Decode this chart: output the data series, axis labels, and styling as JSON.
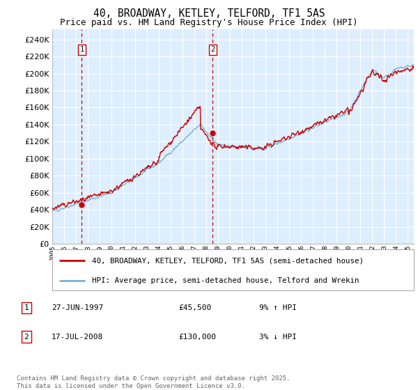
{
  "title": "40, BROADWAY, KETLEY, TELFORD, TF1 5AS",
  "subtitle": "Price paid vs. HM Land Registry's House Price Index (HPI)",
  "ylabel_values": [
    0,
    20000,
    40000,
    60000,
    80000,
    100000,
    120000,
    140000,
    160000,
    180000,
    200000,
    220000,
    240000
  ],
  "ylim": [
    0,
    252000
  ],
  "xlim_start": 1995.0,
  "xlim_end": 2025.5,
  "sale1_x": 1997.49,
  "sale1_y": 45500,
  "sale2_x": 2008.54,
  "sale2_y": 130000,
  "red_line_color": "#cc0000",
  "blue_line_color": "#7ab0d4",
  "background_color": "#ddeeff",
  "grid_color": "#ffffff",
  "legend_line1": "40, BROADWAY, KETLEY, TELFORD, TF1 5AS (semi-detached house)",
  "legend_line2": "HPI: Average price, semi-detached house, Telford and Wrekin",
  "footer": "Contains HM Land Registry data © Crown copyright and database right 2025.\nThis data is licensed under the Open Government Licence v3.0."
}
